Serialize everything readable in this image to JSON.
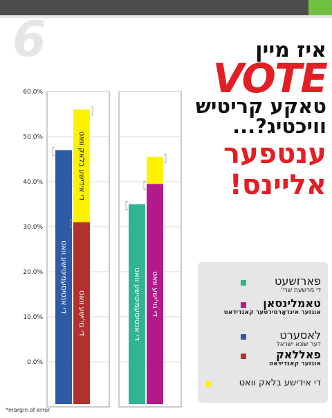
{
  "page_number": "6",
  "headline": {
    "line1": "איז מיין",
    "line2": "VOTE",
    "line3": "טאקע קריטיש",
    "line4": "וויכטיג?...",
    "line5": "ענטפער",
    "line6": "אליינס!"
  },
  "footnote": "*margin of error",
  "legend": [
    {
      "name": "פארזשעט",
      "sub": "די מרשעת שרי'",
      "color": "#2fb593",
      "bold": false
    },
    {
      "name": "טאמלינסאן",
      "sub": "אונזער אינדאָרסירטער קאנדידאט",
      "color": "#b3198a",
      "bold": true
    },
    {
      "name": "לאסערט",
      "sub": "דער שונא ישראל",
      "color": "#2f5ba6",
      "bold": false
    },
    {
      "name": "פאללאק",
      "sub": "אונזער קאנדידאט",
      "color": "#b2312e",
      "bold": true
    },
    {
      "name": "די אידישע בלאק וואט",
      "sub": "",
      "color": "#fff200",
      "bold": false
    }
  ],
  "chart_data": {
    "type": "bar",
    "ylim": [
      -10,
      60
    ],
    "yticks": [
      "60.0%",
      "50.0%",
      "40.0%",
      "30.0%",
      "20.0%",
      "10.0%",
      "0.0%"
    ],
    "groups": [
      {
        "bars": [
          {
            "label": "די אנטיסעמיטישע וואט",
            "value": 47,
            "color": "#2f5ba6",
            "label_color": "#ffffff"
          },
          {
            "label": "די גוי'ישע וואט",
            "value": 31,
            "color": "#b2312e",
            "label_color": "#ffffff"
          }
        ],
        "stack": {
          "label": "די אידישע בלאק וואט",
          "value": 25,
          "color": "#fff200",
          "label_color": "#111111"
        }
      },
      {
        "bars": [
          {
            "label": "די אנטיסעמיטישע וואט",
            "value": 35,
            "color": "#2fb593",
            "label_color": "#ffffff"
          },
          {
            "label": "די גוי'ישע וואט",
            "value": 39.5,
            "color": "#b3198a",
            "label_color": "#ffffff"
          }
        ],
        "stack": {
          "label": "",
          "value": 6,
          "color": "#fff200",
          "label_color": "#111111"
        }
      }
    ]
  }
}
